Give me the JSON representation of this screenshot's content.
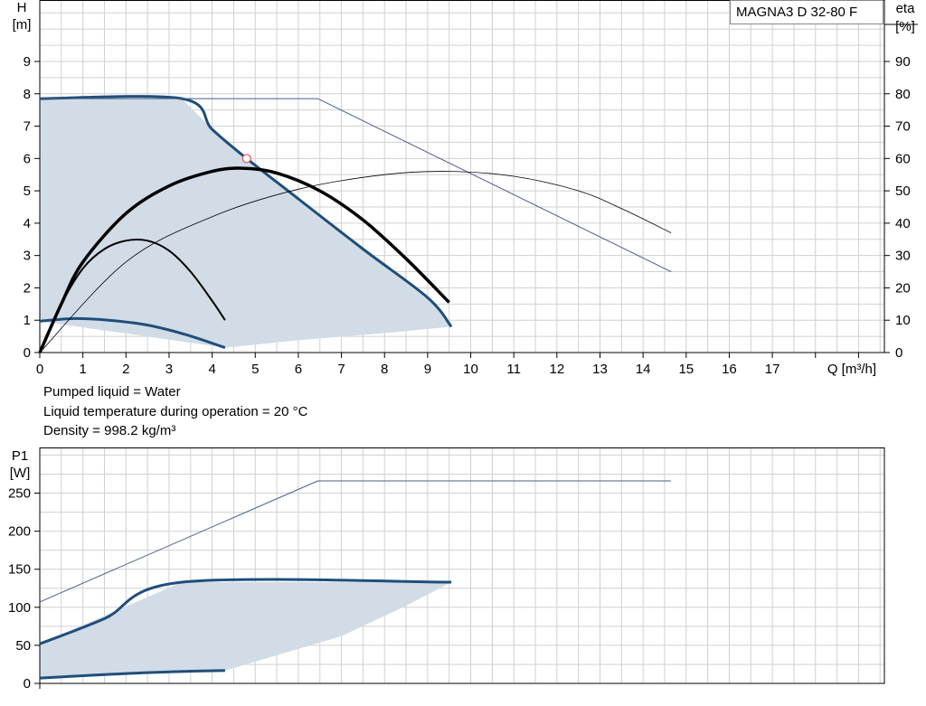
{
  "title": "MAGNA3 D 32-80 F",
  "info": {
    "line1": "Pumped liquid = Water",
    "line2": "Liquid temperature during operation = 20 °C",
    "line3": "Density = 998.2 kg/m³"
  },
  "colors": {
    "grid": "#d0d0d0",
    "area_fill": "#d1dce7",
    "bold_curve": "#1f4e7a",
    "thin_curve": "#4a5f88",
    "eta_curve": "#000000",
    "duty_point": "#e05050"
  },
  "chart_data": [
    {
      "type": "line",
      "name": "head-efficiency",
      "title": "MAGNA3 D 32-80 F",
      "xlabel": "Q [m³/h]",
      "ylabel": "H\n[m]",
      "y2label": "eta\n[%]",
      "xlim": [
        0,
        19.6
      ],
      "ylim": [
        0,
        10.9
      ],
      "y2lim": [
        0,
        109
      ],
      "x_ticks": [
        0,
        1,
        2,
        3,
        4,
        5,
        6,
        7,
        8,
        9,
        10,
        11,
        12,
        13,
        14,
        15,
        16,
        17
      ],
      "y_ticks": [
        0,
        1,
        2,
        3,
        4,
        5,
        6,
        7,
        8,
        9
      ],
      "y2_ticks": [
        0,
        10,
        20,
        30,
        40,
        50,
        60,
        70,
        80,
        90
      ],
      "x_tick_labels": [
        "0",
        "1",
        "2",
        "3",
        "4",
        "5",
        "6",
        "7",
        "8",
        "9",
        "10",
        "11",
        "12",
        "13",
        "14",
        "15",
        "16",
        "17"
      ],
      "y_tick_labels": [
        "0",
        "1",
        "2",
        "3",
        "4",
        "5",
        "6",
        "7",
        "8",
        "9"
      ],
      "y2_tick_labels": [
        "0",
        "10",
        "20",
        "30",
        "40",
        "50",
        "60",
        "70",
        "80",
        "90"
      ],
      "grid": true,
      "operating_area": {
        "upper": [
          [
            0,
            7.85
          ],
          [
            3.3,
            7.85
          ],
          [
            4.0,
            6.9
          ],
          [
            4.8,
            6.0
          ],
          [
            6.0,
            4.75
          ],
          [
            7.5,
            3.2
          ],
          [
            9.0,
            1.7
          ],
          [
            9.55,
            0.8
          ]
        ],
        "lower": [
          [
            9.55,
            0.8
          ],
          [
            8.0,
            0.6
          ],
          [
            6.0,
            0.38
          ],
          [
            4.3,
            0.15
          ],
          [
            0,
            0.97
          ]
        ]
      },
      "series": [
        {
          "role": "head-max",
          "style": "bold",
          "points": [
            [
              0,
              7.85
            ],
            [
              3.3,
              7.85
            ],
            [
              4.0,
              6.9
            ],
            [
              4.8,
              6.0
            ],
            [
              6.0,
              4.75
            ],
            [
              7.5,
              3.2
            ],
            [
              9.0,
              1.7
            ],
            [
              9.55,
              0.8
            ]
          ]
        },
        {
          "role": "head-min",
          "style": "bold",
          "points": [
            [
              0,
              0.97
            ],
            [
              0.8,
              1.05
            ],
            [
              1.6,
              1.0
            ],
            [
              2.5,
              0.85
            ],
            [
              3.4,
              0.55
            ],
            [
              4.3,
              0.15
            ]
          ]
        },
        {
          "role": "head-thin",
          "style": "thin",
          "points": [
            [
              0,
              7.85
            ],
            [
              6.45,
              7.85
            ],
            [
              14.65,
              2.5
            ]
          ]
        },
        {
          "role": "eta-thick",
          "style": "eta-bold",
          "points": [
            [
              0,
              0
            ],
            [
              0.5,
              15
            ],
            [
              1.0,
              28
            ],
            [
              2.0,
              43
            ],
            [
              3.0,
              51.5
            ],
            [
              4.0,
              56
            ],
            [
              4.7,
              57
            ],
            [
              5.5,
              55.5
            ],
            [
              6.5,
              50
            ],
            [
              7.5,
              41
            ],
            [
              8.5,
              29
            ],
            [
              9.5,
              15.5
            ]
          ]
        },
        {
          "role": "eta-min",
          "style": "eta",
          "points": [
            [
              0,
              0
            ],
            [
              0.5,
              15
            ],
            [
              1.0,
              26
            ],
            [
              1.5,
              32
            ],
            [
              2.0,
              34.6
            ],
            [
              2.5,
              34.6
            ],
            [
              3.0,
              31.5
            ],
            [
              3.5,
              25
            ],
            [
              4.0,
              16
            ],
            [
              4.3,
              10
            ]
          ]
        },
        {
          "role": "eta-max",
          "style": "eta-thin",
          "points": [
            [
              0,
              0
            ],
            [
              2,
              28
            ],
            [
              4,
              42
            ],
            [
              6,
              50.5
            ],
            [
              8,
              55
            ],
            [
              9.5,
              56
            ],
            [
              11,
              54.5
            ],
            [
              12.5,
              50
            ],
            [
              13.5,
              44.5
            ],
            [
              14.65,
              37
            ]
          ]
        }
      ],
      "duty_point": {
        "x": 4.8,
        "y": 6.0
      }
    },
    {
      "type": "line",
      "name": "power",
      "ylabel": "P1\n[W]",
      "xlim": [
        0,
        19.6
      ],
      "ylim": [
        0,
        310
      ],
      "y_ticks": [
        0,
        50,
        100,
        150,
        200,
        250
      ],
      "y_tick_labels": [
        "0",
        "50",
        "100",
        "150",
        "200",
        "250"
      ],
      "grid": true,
      "operating_area": {
        "upper": [
          [
            0,
            52
          ],
          [
            3.3,
            133
          ],
          [
            9.55,
            133
          ]
        ],
        "lower": [
          [
            9.55,
            133
          ],
          [
            8.5,
            102
          ],
          [
            7.0,
            62
          ],
          [
            5.5,
            37
          ],
          [
            4.3,
            17
          ],
          [
            0,
            7
          ]
        ]
      },
      "series": [
        {
          "role": "p1-max",
          "style": "bold",
          "points": [
            [
              0,
              52
            ],
            [
              1.5,
              85
            ],
            [
              3.3,
              133
            ],
            [
              9.55,
              133
            ]
          ]
        },
        {
          "role": "p1-min",
          "style": "bold",
          "points": [
            [
              0,
              7
            ],
            [
              2.0,
              13
            ],
            [
              3.5,
              16
            ],
            [
              4.3,
              17
            ]
          ]
        },
        {
          "role": "p1-thin",
          "style": "thin",
          "points": [
            [
              0,
              107
            ],
            [
              6.45,
              266
            ],
            [
              14.65,
              266
            ]
          ]
        }
      ]
    }
  ]
}
